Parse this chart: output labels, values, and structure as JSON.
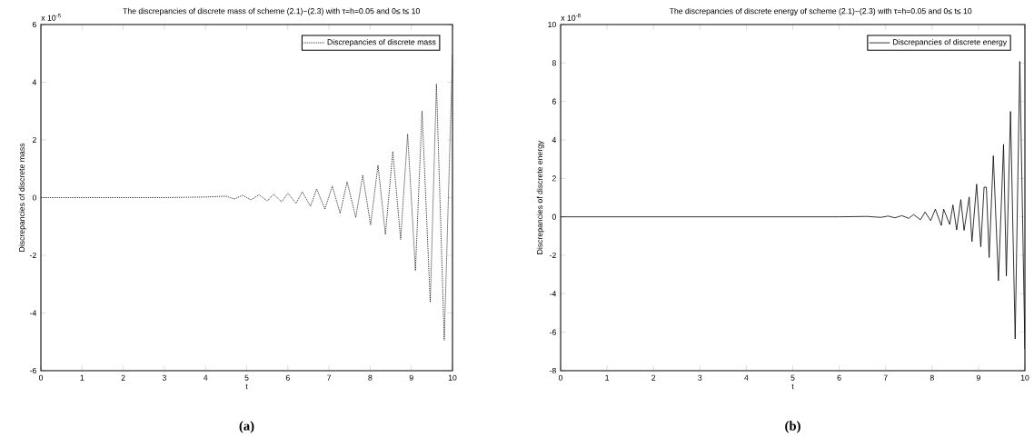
{
  "chart_data": [
    {
      "type": "line",
      "title": "The discrepancies of discrete mass of scheme (2.1)−(2.3) with τ=h=0.05 and 0≤ t≤ 10",
      "xlabel": "t",
      "ylabel": "Discrepancies of discrete mass",
      "annotations": [
        "x 10$^{-5}$",
        "(a)"
      ],
      "xlim": [
        0,
        10
      ],
      "ylim": [
        -6,
        6
      ],
      "xticks": [
        0,
        1,
        2,
        3,
        4,
        5,
        6,
        7,
        8,
        9,
        10
      ],
      "yticks": [
        -6,
        -4,
        -2,
        0,
        2,
        4,
        6
      ],
      "legend": "top right",
      "marker": "none",
      "line_style": "dotted",
      "x": [
        0,
        3,
        4,
        4.5,
        4.7,
        4.9,
        5.1,
        5.3,
        5.5,
        5.65,
        5.85,
        6.0,
        6.2,
        6.35,
        6.55,
        6.7,
        6.9,
        7.08,
        7.27,
        7.44,
        7.65,
        7.82,
        8.01,
        8.19,
        8.37,
        8.55,
        8.74,
        8.91,
        9.1,
        9.26,
        9.46,
        9.61,
        9.8,
        10
      ],
      "series": [
        {
          "name": "Discrepancies of discrete mass",
          "color": "#000000",
          "values": [
            0,
            0,
            0.02,
            0.05,
            -0.05,
            0.08,
            -0.08,
            0.1,
            -0.12,
            0.12,
            -0.15,
            0.15,
            -0.2,
            0.2,
            -0.3,
            0.3,
            -0.4,
            0.4,
            -0.55,
            0.55,
            -0.69,
            0.78,
            -0.95,
            1.12,
            -1.28,
            1.6,
            -1.45,
            2.2,
            -2.53,
            3.0,
            -3.63,
            3.94,
            -4.94,
            4.95
          ]
        }
      ]
    },
    {
      "type": "line",
      "title": "The discrepancies of discrete energy of scheme (2.1)−(2.3) with τ=h=0.05 and 0≤ t≤ 10",
      "xlabel": "t",
      "ylabel": "Discrepancies of discrete energy",
      "annotations": [
        "x 10$^{-8}$",
        "(b)"
      ],
      "xlim": [
        0,
        10
      ],
      "ylim": [
        -8,
        10
      ],
      "xticks": [
        0,
        1,
        2,
        3,
        4,
        5,
        6,
        7,
        8,
        9,
        10
      ],
      "yticks": [
        -8,
        -6,
        -4,
        -2,
        0,
        2,
        4,
        6,
        8,
        10
      ],
      "legend": "top right",
      "marker": "none",
      "line_style": "solid",
      "x": [
        0,
        6,
        6.6,
        6.9,
        7.05,
        7.2,
        7.35,
        7.5,
        7.6,
        7.75,
        7.85,
        7.97,
        8.07,
        8.2,
        8.25,
        8.38,
        8.45,
        8.53,
        8.62,
        8.69,
        8.8,
        8.86,
        8.96,
        9.05,
        9.12,
        9.17,
        9.23,
        9.32,
        9.43,
        9.54,
        9.6,
        9.69,
        9.79,
        9.89,
        10
      ],
      "series": [
        {
          "name": "Discrepancies of discrete energy",
          "color": "#000000",
          "values": [
            0,
            0,
            0.02,
            -0.03,
            0.04,
            -0.05,
            0.06,
            -0.08,
            0.12,
            -0.15,
            0.25,
            -0.2,
            0.4,
            -0.45,
            0.4,
            -0.4,
            0.62,
            -0.68,
            0.9,
            -0.7,
            1.03,
            -1.29,
            1.7,
            -1.56,
            1.54,
            1.54,
            -2.12,
            3.18,
            -3.32,
            3.77,
            -3.08,
            5.48,
            -6.35,
            8.08,
            -6.87
          ]
        }
      ]
    }
  ]
}
